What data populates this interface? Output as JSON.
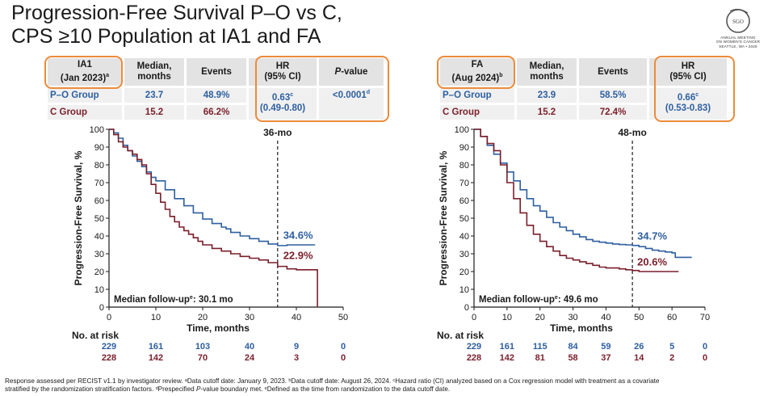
{
  "title": {
    "line1": "Progression-Free Survival P–O vs C,",
    "line2": "CPS ≥10 Population at IA1 and FA"
  },
  "logo": {
    "brand": "SGO",
    "line1": "ANNUAL MEETING",
    "line2": "ON WOMEN'S CANCER",
    "line3": "SEATTLE, WA • 2025"
  },
  "colors": {
    "po": "#2e5fa0",
    "c": "#7a1f2b",
    "highlight": "#ec8b3a",
    "cell": "#e3e3e3"
  },
  "tables": [
    {
      "header": {
        "analysis": "IA1",
        "date": "(Jan 2023)",
        "date_sup": "a",
        "median": "Median,",
        "median2": "months",
        "events": "Events",
        "hr": "HR",
        "hr2": "(95% CI)",
        "p_italic": "P",
        "p_rest": "-value"
      },
      "rows": [
        {
          "group": "P–O Group",
          "median": "23.7",
          "events": "48.9%",
          "hr": "0.63",
          "hr_sup": "c",
          "ci": "(0.49-0.80)",
          "p": "<0.0001",
          "p_sup": "d"
        },
        {
          "group": "C Group",
          "median": "15.2",
          "events": "66.2%"
        }
      ]
    },
    {
      "header": {
        "analysis": "FA",
        "date": "(Aug 2024)",
        "date_sup": "b",
        "median": "Median,",
        "median2": "months",
        "events": "Events",
        "hr": "HR",
        "hr2": "(95% CI)"
      },
      "rows": [
        {
          "group": "P–O Group",
          "median": "23.9",
          "events": "58.5%",
          "hr": "0.66",
          "hr_sup": "c",
          "ci": "(0.53-0.83)"
        },
        {
          "group": "C Group",
          "median": "15.2",
          "events": "72.4%"
        }
      ]
    }
  ],
  "chart_data": [
    {
      "type": "line",
      "title": "IA1",
      "xlabel": "Time, months",
      "ylabel": "Progression-Free Survival, %",
      "xlim": [
        0,
        50
      ],
      "ylim": [
        0,
        100
      ],
      "xticks": [
        0,
        10,
        20,
        30,
        40,
        50
      ],
      "yticks": [
        0,
        10,
        20,
        30,
        40,
        50,
        60,
        70,
        80,
        90,
        100
      ],
      "vline": {
        "x": 36,
        "label": "36-mo"
      },
      "annotations": [
        {
          "text": "34.6%",
          "x": 36.5,
          "y": 38.5,
          "series": "P–O"
        },
        {
          "text": "22.9%",
          "x": 36.5,
          "y": 27
        }
      ],
      "note": "Median follow-up",
      "note_sup": "e",
      "note_rest": ": 30.1 mo",
      "series": [
        {
          "name": "P–O",
          "color": "#2e5fa0",
          "points": [
            [
              0,
              100
            ],
            [
              1,
              98
            ],
            [
              2,
              95
            ],
            [
              3,
              91
            ],
            [
              4,
              88
            ],
            [
              5,
              85
            ],
            [
              6,
              82
            ],
            [
              7,
              79
            ],
            [
              8,
              76
            ],
            [
              9,
              73
            ],
            [
              10,
              71
            ],
            [
              12,
              66
            ],
            [
              14,
              61
            ],
            [
              16,
              57
            ],
            [
              18,
              53
            ],
            [
              20,
              49.5
            ],
            [
              22,
              47
            ],
            [
              24,
              45
            ],
            [
              25,
              44
            ],
            [
              26,
              42
            ],
            [
              28,
              40
            ],
            [
              30,
              38.5
            ],
            [
              32,
              37
            ],
            [
              34,
              35.5
            ],
            [
              36,
              34.6
            ],
            [
              38,
              35
            ],
            [
              40,
              35
            ],
            [
              42,
              35
            ],
            [
              44,
              35
            ]
          ]
        },
        {
          "name": "C",
          "color": "#7a1f2b",
          "points": [
            [
              0,
              100
            ],
            [
              1,
              97
            ],
            [
              2,
              93
            ],
            [
              3,
              90
            ],
            [
              4,
              88
            ],
            [
              5,
              86
            ],
            [
              6,
              83
            ],
            [
              7,
              80
            ],
            [
              8,
              75
            ],
            [
              9,
              69
            ],
            [
              10,
              64
            ],
            [
              11,
              59
            ],
            [
              12,
              55
            ],
            [
              13,
              51
            ],
            [
              14,
              48
            ],
            [
              15,
              45
            ],
            [
              16,
              43
            ],
            [
              17,
              41
            ],
            [
              18,
              39
            ],
            [
              19,
              37
            ],
            [
              20,
              35
            ],
            [
              22,
              33
            ],
            [
              24,
              31.5
            ],
            [
              26,
              30
            ],
            [
              28,
              28.5
            ],
            [
              30,
              27.5
            ],
            [
              32,
              26.5
            ],
            [
              34,
              25
            ],
            [
              36,
              22.9
            ],
            [
              38,
              21.5
            ],
            [
              40,
              21
            ],
            [
              42,
              21
            ],
            [
              44,
              21
            ],
            [
              44.5,
              21
            ],
            [
              44.5,
              0
            ]
          ]
        }
      ],
      "risk": {
        "label": "No. at risk",
        "times": [
          0,
          10,
          20,
          30,
          40,
          50
        ],
        "po": [
          "229",
          "161",
          "103",
          "40",
          "9",
          "0"
        ],
        "c": [
          "228",
          "142",
          "70",
          "24",
          "3",
          "0"
        ]
      }
    },
    {
      "type": "line",
      "title": "FA",
      "xlabel": "Time, months",
      "ylabel": "Progression-Free Survival, %",
      "xlim": [
        0,
        70
      ],
      "ylim": [
        0,
        100
      ],
      "xticks": [
        0,
        10,
        20,
        30,
        40,
        50,
        60,
        70
      ],
      "yticks": [
        0,
        10,
        20,
        30,
        40,
        50,
        60,
        70,
        80,
        90,
        100
      ],
      "vline": {
        "x": 48,
        "label": "48-mo"
      },
      "annotations": [
        {
          "text": "34.7%",
          "x": 48.5,
          "y": 38,
          "series": "P–O"
        },
        {
          "text": "20.6%",
          "x": 48.5,
          "y": 23.5
        }
      ],
      "note": "Median follow-up",
      "note_sup": "e",
      "note_rest": ": 49.6 mo",
      "series": [
        {
          "name": "P–O",
          "color": "#2e5fa0",
          "points": [
            [
              0,
              100
            ],
            [
              2,
              96
            ],
            [
              4,
              91
            ],
            [
              6,
              86
            ],
            [
              8,
              81
            ],
            [
              10,
              76
            ],
            [
              12,
              71
            ],
            [
              14,
              66
            ],
            [
              16,
              61
            ],
            [
              18,
              57
            ],
            [
              20,
              54
            ],
            [
              22,
              50.5
            ],
            [
              24,
              47.5
            ],
            [
              26,
              45
            ],
            [
              28,
              43
            ],
            [
              30,
              41
            ],
            [
              32,
              39.5
            ],
            [
              34,
              38
            ],
            [
              36,
              37
            ],
            [
              38,
              36.5
            ],
            [
              40,
              36
            ],
            [
              42,
              35.5
            ],
            [
              44,
              35.2
            ],
            [
              46,
              35
            ],
            [
              48,
              34.7
            ],
            [
              50,
              34
            ],
            [
              52,
              33
            ],
            [
              54,
              32
            ],
            [
              56,
              31.5
            ],
            [
              58,
              31
            ],
            [
              60,
              30.5
            ],
            [
              61,
              28
            ],
            [
              64,
              28
            ],
            [
              66,
              28
            ]
          ]
        },
        {
          "name": "C",
          "color": "#7a1f2b",
          "points": [
            [
              0,
              100
            ],
            [
              2,
              96
            ],
            [
              4,
              92
            ],
            [
              6,
              88
            ],
            [
              8,
              80
            ],
            [
              10,
              70
            ],
            [
              12,
              61
            ],
            [
              14,
              53
            ],
            [
              16,
              46
            ],
            [
              18,
              41
            ],
            [
              20,
              37
            ],
            [
              22,
              34
            ],
            [
              24,
              31.5
            ],
            [
              26,
              29
            ],
            [
              28,
              27.5
            ],
            [
              30,
              26.5
            ],
            [
              32,
              25.5
            ],
            [
              34,
              24.5
            ],
            [
              36,
              23.5
            ],
            [
              38,
              22.5
            ],
            [
              40,
              22
            ],
            [
              42,
              22
            ],
            [
              44,
              21.5
            ],
            [
              46,
              21
            ],
            [
              48,
              20.6
            ],
            [
              50,
              20
            ],
            [
              52,
              20
            ],
            [
              56,
              20
            ],
            [
              60,
              20
            ],
            [
              62,
              20
            ]
          ]
        }
      ],
      "risk": {
        "label": "No. at risk",
        "times": [
          0,
          10,
          20,
          30,
          40,
          50,
          60,
          70
        ],
        "po": [
          "229",
          "161",
          "115",
          "84",
          "59",
          "26",
          "5",
          "0"
        ],
        "c": [
          "228",
          "142",
          "81",
          "58",
          "37",
          "14",
          "2",
          "0"
        ]
      }
    }
  ],
  "footnote": {
    "line1": "Response assessed per RECIST v1.1 by investigator review. ᵃData cutoff date: January 9, 2023. ᵇData cutoff date: August 26, 2024. ᶜHazard ratio (CI) analyzed based on a Cox regression model with treatment as a covariate",
    "line2_a": "stratified by the randomization stratification factors. ᵈPrespecified ",
    "line2_p": "P",
    "line2_b": "-value boundary met. ᵉDefined as the time from randomization to the data cutoff date."
  }
}
